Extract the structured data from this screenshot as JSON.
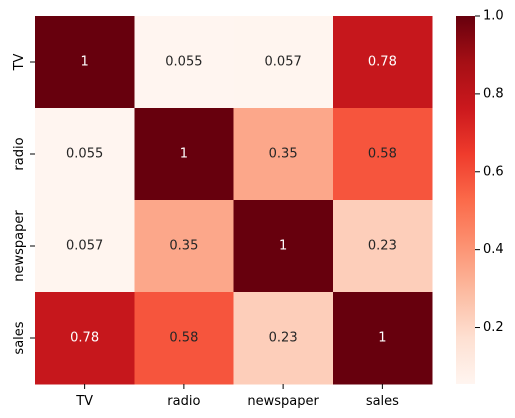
{
  "chart_data": {
    "type": "heatmap",
    "title": "",
    "xlabel": "",
    "ylabel": "",
    "x_categories": [
      "TV",
      "radio",
      "newspaper",
      "sales"
    ],
    "y_categories": [
      "TV",
      "radio",
      "newspaper",
      "sales"
    ],
    "values": [
      [
        1,
        0.055,
        0.057,
        0.78
      ],
      [
        0.055,
        1,
        0.35,
        0.58
      ],
      [
        0.057,
        0.35,
        1,
        0.23
      ],
      [
        0.78,
        0.58,
        0.23,
        1
      ]
    ],
    "value_labels": [
      [
        "1",
        "0.055",
        "0.057",
        "0.78"
      ],
      [
        "0.055",
        "1",
        "0.35",
        "0.58"
      ],
      [
        "0.057",
        "0.35",
        "1",
        "0.23"
      ],
      [
        "0.78",
        "0.58",
        "0.23",
        "1"
      ]
    ],
    "annotated": true,
    "colormap": "Reds",
    "colorbar": {
      "range": [
        0.055,
        1.0
      ],
      "ticks": [
        0.2,
        0.4,
        0.6,
        0.8,
        1.0
      ],
      "tick_labels": [
        "0.2",
        "0.4",
        "0.6",
        "0.8",
        "1.0"
      ],
      "placement": "right"
    },
    "grid": false
  },
  "colors": {
    "reds_scale": [
      "#fff5f0",
      "#fee0d2",
      "#fcbba1",
      "#fc9272",
      "#fb6a4a",
      "#ef3b2c",
      "#cb181d",
      "#a50f15",
      "#67000d"
    ],
    "text_light": "#ffffff",
    "text_dark": "#262626",
    "axis": "#000000"
  }
}
